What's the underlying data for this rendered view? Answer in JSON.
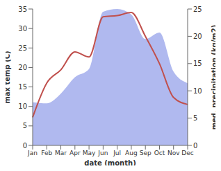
{
  "chart_data": {
    "type": "line",
    "x_label": "date (month)",
    "y_label": "max temp (C)",
    "y2_label": "med. precipitation (kg/m2)",
    "categories": [
      "Jan",
      "Feb",
      "Mar",
      "Apr",
      "May",
      "Jun",
      "Jul",
      "Aug",
      "Sep",
      "Oct",
      "Nov",
      "Dec"
    ],
    "ylim": [
      0,
      35
    ],
    "yticks": [
      0,
      5,
      10,
      15,
      20,
      25,
      30,
      35
    ],
    "y2lim": [
      0,
      25
    ],
    "y2ticks": [
      0,
      5,
      10,
      15,
      20,
      25
    ],
    "series": [
      {
        "name": "med. precipitation",
        "type": "area",
        "axis": "y2",
        "color": "#b0b9ef",
        "values": [
          7.9,
          7.7,
          9.5,
          12.5,
          14,
          24.5,
          25,
          24,
          19.5,
          20.7,
          13.5,
          11.4
        ]
      },
      {
        "name": "max temp",
        "type": "line",
        "color": "#c0504d",
        "values": [
          7.2,
          16,
          19.4,
          24,
          22.7,
          33,
          33.3,
          34.1,
          28,
          21,
          12.3,
          10.5
        ]
      }
    ]
  }
}
